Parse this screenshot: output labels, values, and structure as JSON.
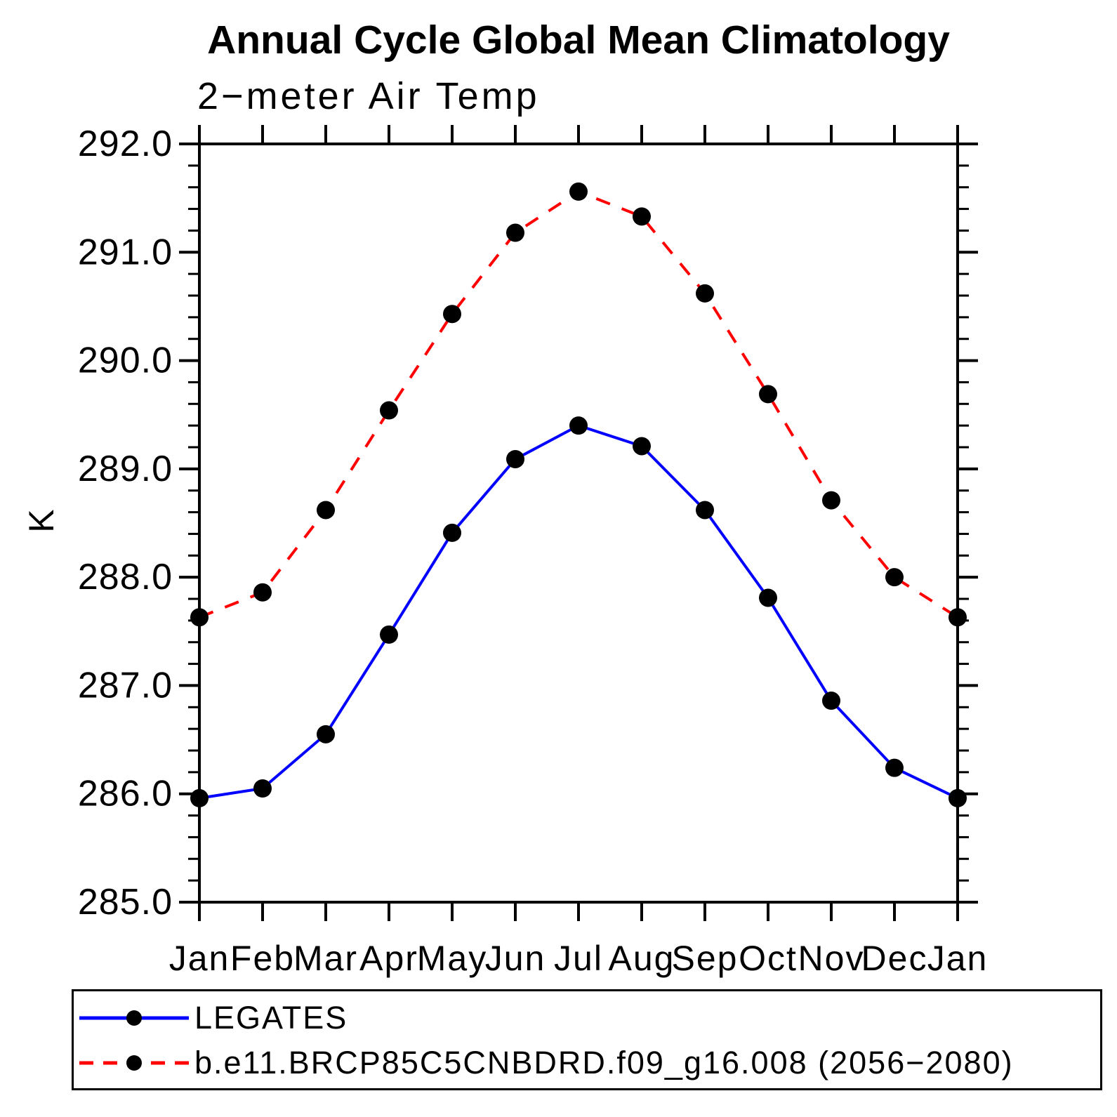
{
  "chart_data": {
    "type": "line",
    "title": "Annual Cycle Global Mean Climatology",
    "subtitle": "2−meter Air Temp",
    "ylabel": "K",
    "x_categories": [
      "Jan",
      "Feb",
      "Mar",
      "Apr",
      "May",
      "Jun",
      "Jul",
      "Aug",
      "Sep",
      "Oct",
      "Nov",
      "Dec",
      "Jan"
    ],
    "ylim": [
      285.0,
      292.0
    ],
    "ytick_major": 1.0,
    "ytick_minor": 0.2,
    "ytick_labels": [
      "285.0",
      "286.0",
      "287.0",
      "288.0",
      "289.0",
      "290.0",
      "291.0",
      "292.0"
    ],
    "grid": false,
    "legend_position": "bottom",
    "axis_color": "#000000",
    "marker": {
      "shape": "circle",
      "color": "#000000"
    },
    "series": [
      {
        "name": "LEGATES",
        "color": "#0000ff",
        "line_style": "solid",
        "values": [
          285.96,
          286.05,
          286.55,
          287.47,
          288.41,
          289.09,
          289.4,
          289.21,
          288.62,
          287.81,
          286.86,
          286.24,
          285.96
        ]
      },
      {
        "name": "b.e11.BRCP85C5CNBDRD.f09_g16.008 (2056−2080)",
        "color": "#ff0000",
        "line_style": "dashed",
        "values": [
          287.63,
          287.86,
          288.62,
          289.54,
          290.43,
          291.18,
          291.56,
          291.33,
          290.62,
          289.69,
          288.71,
          288.0,
          287.63
        ]
      }
    ]
  }
}
